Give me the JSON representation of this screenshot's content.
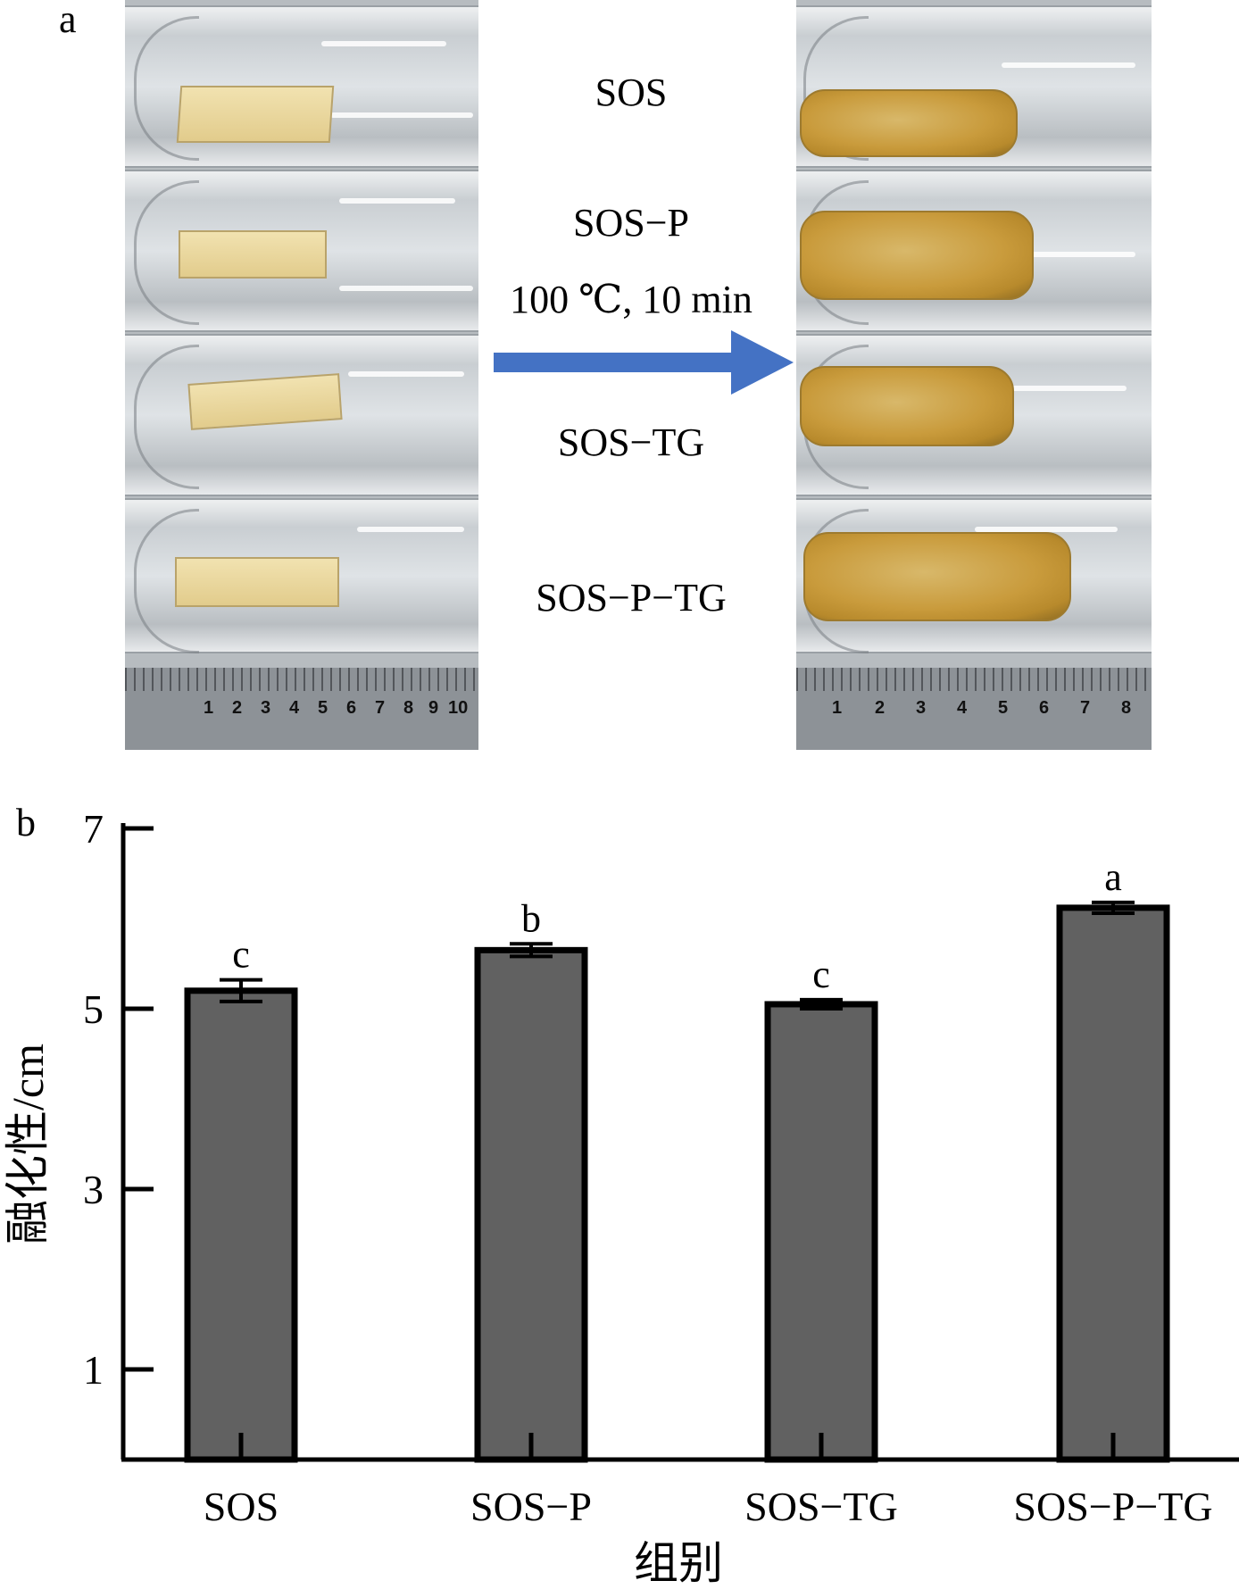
{
  "panel_a": {
    "label": "a",
    "samples": [
      "SOS",
      "SOS−P",
      "SOS−TG",
      "SOS−P−TG"
    ],
    "condition": "100 ℃, 10 min",
    "ruler_before": [
      "1",
      "2",
      "3",
      "4",
      "5",
      "6",
      "7",
      "8",
      "9",
      "10"
    ],
    "ruler_after": [
      "1",
      "2",
      "3",
      "4",
      "5",
      "6",
      "7",
      "8"
    ],
    "arrow_color": "#4472C4"
  },
  "panel_b": {
    "label": "b"
  },
  "chart_data": {
    "type": "bar",
    "categories": [
      "SOS",
      "SOS−P",
      "SOS−TG",
      "SOS−P−TG"
    ],
    "values": [
      5.2,
      5.65,
      5.05,
      6.12
    ],
    "errors": [
      0.12,
      0.07,
      0.05,
      0.06
    ],
    "significance": [
      "c",
      "b",
      "c",
      "a"
    ],
    "xlabel": "组别",
    "ylabel": "融化性/cm",
    "ylim": [
      0,
      7
    ],
    "yticks": [
      1,
      3,
      5,
      7
    ],
    "bar_color": "#616161",
    "grid": false,
    "legend": "none"
  }
}
